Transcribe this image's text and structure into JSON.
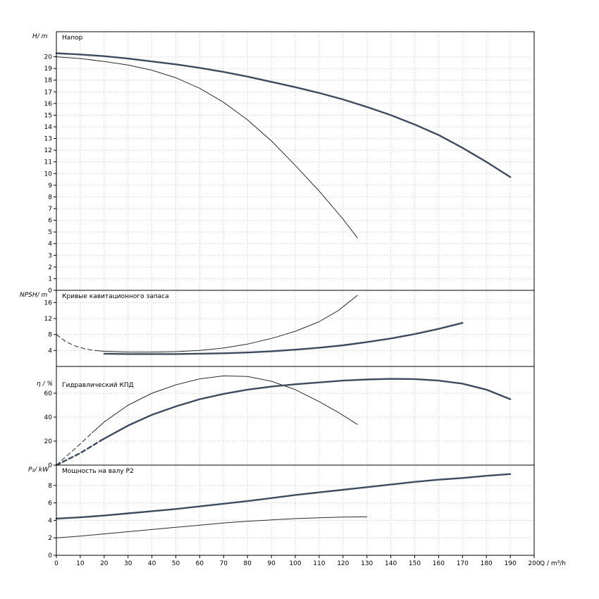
{
  "page": {
    "background": "#ffffff"
  },
  "colors": {
    "thick": "#3c4c5e",
    "thin": "#2a2a2a",
    "grid": "#c9c9c9",
    "border": "#000000"
  },
  "labels": {
    "panel1_axis": "H/ m",
    "panel1_title": "Напор",
    "panel2_axis": "NPSH/ m",
    "panel2_title": "Кривые кавитационного запаса",
    "panel3_axis": "η / %",
    "panel3_title": "Гидравлический КПД",
    "panel4_axis": "P₂/ kW",
    "panel4_title": "Мощность на валу P2",
    "x_unit": "Q / m³/h"
  },
  "chart_data": [
    {
      "type": "line",
      "title": "Напор",
      "ylabel": "H/ m",
      "xlabel": "Q / m³/h",
      "xlim": [
        0,
        200
      ],
      "ymax": 21,
      "yticks": [
        0,
        1,
        2,
        3,
        4,
        5,
        6,
        7,
        8,
        9,
        10,
        11,
        12,
        13,
        14,
        15,
        16,
        17,
        18,
        19,
        20
      ],
      "series": [
        {
          "name": "head-main-curve",
          "style": "thick",
          "dash": false,
          "points": [
            [
              0,
              20.3
            ],
            [
              10,
              20.2
            ],
            [
              20,
              20.05
            ],
            [
              30,
              19.85
            ],
            [
              40,
              19.6
            ],
            [
              50,
              19.35
            ],
            [
              60,
              19.05
            ],
            [
              70,
              18.7
            ],
            [
              80,
              18.3
            ],
            [
              90,
              17.85
            ],
            [
              100,
              17.4
            ],
            [
              110,
              16.9
            ],
            [
              120,
              16.35
            ],
            [
              130,
              15.7
            ],
            [
              140,
              15.0
            ],
            [
              150,
              14.2
            ],
            [
              160,
              13.3
            ],
            [
              170,
              12.2
            ],
            [
              180,
              11.0
            ],
            [
              190,
              9.7
            ]
          ]
        },
        {
          "name": "head-secondary-curve",
          "style": "thin",
          "dash": false,
          "points": [
            [
              0,
              20.0
            ],
            [
              10,
              19.85
            ],
            [
              20,
              19.6
            ],
            [
              30,
              19.3
            ],
            [
              40,
              18.85
            ],
            [
              50,
              18.2
            ],
            [
              60,
              17.3
            ],
            [
              70,
              16.1
            ],
            [
              80,
              14.6
            ],
            [
              90,
              12.8
            ],
            [
              100,
              10.7
            ],
            [
              110,
              8.5
            ],
            [
              120,
              6.1
            ],
            [
              126,
              4.5
            ]
          ]
        }
      ]
    },
    {
      "type": "line",
      "title": "Кривые кавитационного запаса",
      "ylabel": "NPSH/ m",
      "xlim": [
        0,
        200
      ],
      "ymax": 18,
      "yticks": [
        4,
        8,
        12,
        16
      ],
      "series": [
        {
          "name": "npsh-secondary-lead",
          "style": "thin",
          "dash": true,
          "points": [
            [
              0,
              8.0
            ],
            [
              4,
              6.2
            ],
            [
              8,
              5.1
            ],
            [
              12,
              4.4
            ],
            [
              16,
              4.0
            ]
          ]
        },
        {
          "name": "npsh-secondary-curve",
          "style": "thin",
          "dash": false,
          "points": [
            [
              16,
              4.0
            ],
            [
              20,
              3.8
            ],
            [
              30,
              3.6
            ],
            [
              40,
              3.6
            ],
            [
              50,
              3.7
            ],
            [
              60,
              4.0
            ],
            [
              70,
              4.6
            ],
            [
              80,
              5.6
            ],
            [
              90,
              7.0
            ],
            [
              100,
              8.8
            ],
            [
              110,
              11.2
            ],
            [
              118,
              14.0
            ],
            [
              126,
              17.8
            ]
          ]
        },
        {
          "name": "npsh-main-curve",
          "style": "thick",
          "dash": false,
          "points": [
            [
              20,
              3.2
            ],
            [
              30,
              3.1
            ],
            [
              40,
              3.1
            ],
            [
              50,
              3.1
            ],
            [
              60,
              3.2
            ],
            [
              70,
              3.3
            ],
            [
              80,
              3.5
            ],
            [
              90,
              3.8
            ],
            [
              100,
              4.2
            ],
            [
              110,
              4.7
            ],
            [
              120,
              5.3
            ],
            [
              130,
              6.1
            ],
            [
              140,
              7.0
            ],
            [
              150,
              8.1
            ],
            [
              160,
              9.4
            ],
            [
              170,
              10.9
            ]
          ]
        }
      ]
    },
    {
      "type": "line",
      "title": "Гидравлический КПД",
      "ylabel": "η / %",
      "xlim": [
        0,
        200
      ],
      "ymax": 80,
      "yticks": [
        0,
        20,
        40,
        60
      ],
      "series": [
        {
          "name": "eta-secondary-lead",
          "style": "thin",
          "dash": true,
          "points": [
            [
              0,
              0
            ],
            [
              8,
              14
            ],
            [
              15,
              27
            ]
          ]
        },
        {
          "name": "eta-secondary-curve",
          "style": "thin",
          "dash": false,
          "points": [
            [
              15,
              27
            ],
            [
              20,
              36
            ],
            [
              30,
              50
            ],
            [
              40,
              60
            ],
            [
              50,
              67
            ],
            [
              60,
              72
            ],
            [
              70,
              74.5
            ],
            [
              80,
              74
            ],
            [
              90,
              70
            ],
            [
              100,
              63
            ],
            [
              110,
              53
            ],
            [
              118,
              44
            ],
            [
              126,
              34
            ]
          ]
        },
        {
          "name": "eta-main-lead",
          "style": "thick",
          "dash": true,
          "points": [
            [
              0,
              0
            ],
            [
              10,
              10
            ],
            [
              19,
              21
            ]
          ]
        },
        {
          "name": "eta-main-curve",
          "style": "thick",
          "dash": false,
          "points": [
            [
              19,
              21
            ],
            [
              30,
              33
            ],
            [
              40,
              42
            ],
            [
              50,
              49
            ],
            [
              60,
              55
            ],
            [
              70,
              59.5
            ],
            [
              80,
              63
            ],
            [
              90,
              65.5
            ],
            [
              100,
              67.5
            ],
            [
              110,
              69
            ],
            [
              120,
              70.5
            ],
            [
              130,
              71.5
            ],
            [
              140,
              72
            ],
            [
              150,
              71.8
            ],
            [
              160,
              70.5
            ],
            [
              170,
              68
            ],
            [
              180,
              63
            ],
            [
              190,
              55
            ]
          ]
        }
      ]
    },
    {
      "type": "line",
      "title": "Мощность на валу P2",
      "ylabel": "P₂/ kW",
      "xlim": [
        0,
        200
      ],
      "ymax": 10,
      "yticks": [
        0,
        2,
        4,
        6,
        8
      ],
      "series": [
        {
          "name": "power-main-curve",
          "style": "thick",
          "dash": false,
          "points": [
            [
              0,
              4.2
            ],
            [
              10,
              4.35
            ],
            [
              20,
              4.55
            ],
            [
              30,
              4.8
            ],
            [
              40,
              5.05
            ],
            [
              50,
              5.3
            ],
            [
              60,
              5.6
            ],
            [
              70,
              5.9
            ],
            [
              80,
              6.2
            ],
            [
              90,
              6.55
            ],
            [
              100,
              6.9
            ],
            [
              110,
              7.2
            ],
            [
              120,
              7.5
            ],
            [
              130,
              7.8
            ],
            [
              140,
              8.1
            ],
            [
              150,
              8.4
            ],
            [
              160,
              8.65
            ],
            [
              170,
              8.85
            ],
            [
              180,
              9.1
            ],
            [
              190,
              9.3
            ]
          ]
        },
        {
          "name": "power-secondary-curve",
          "style": "thin",
          "dash": false,
          "points": [
            [
              0,
              2.0
            ],
            [
              10,
              2.2
            ],
            [
              20,
              2.45
            ],
            [
              30,
              2.7
            ],
            [
              40,
              2.95
            ],
            [
              50,
              3.2
            ],
            [
              60,
              3.45
            ],
            [
              70,
              3.7
            ],
            [
              80,
              3.9
            ],
            [
              90,
              4.05
            ],
            [
              100,
              4.2
            ],
            [
              110,
              4.3
            ],
            [
              120,
              4.38
            ],
            [
              130,
              4.4
            ]
          ]
        }
      ]
    }
  ],
  "x_axis": {
    "min": 0,
    "max": 200,
    "step": 10,
    "ticks": [
      0,
      10,
      20,
      30,
      40,
      50,
      60,
      70,
      80,
      90,
      100,
      110,
      120,
      130,
      140,
      150,
      160,
      170,
      180,
      190,
      200
    ]
  }
}
